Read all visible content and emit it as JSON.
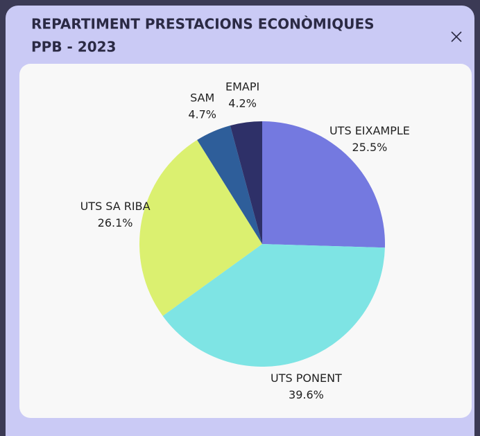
{
  "chart_data": {
    "type": "pie",
    "title": [
      "REPARTIMENT PRESTACIONS ECONÒMIQUES",
      "PPB - 2023"
    ],
    "categories": [
      "UTS EIXAMPLE",
      "UTS PONENT",
      "UTS SA RIBA",
      "SAM",
      "EMAPI"
    ],
    "values": [
      25.5,
      39.6,
      26.1,
      4.7,
      4.2
    ],
    "value_labels": [
      "25.5%",
      "39.6%",
      "26.1%",
      "4.7%",
      "4.2%"
    ],
    "colors": [
      "#7479e0",
      "#7ee4e4",
      "#dbf070",
      "#2e5e9a",
      "#2e3068"
    ]
  }
}
